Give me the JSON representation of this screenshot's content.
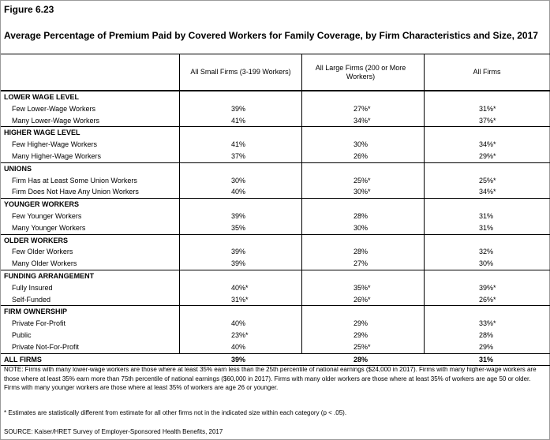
{
  "figure_label": "Figure 6.23",
  "title": "Average Percentage of Premium Paid by Covered Workers for Family Coverage, by Firm Characteristics and Size, 2017",
  "columns": [
    "All Small Firms (3-199 Workers)",
    "All Large Firms (200 or More Workers)",
    "All Firms"
  ],
  "sections": [
    {
      "heading": "LOWER WAGE LEVEL",
      "rows": [
        {
          "label": "Few Lower-Wage Workers",
          "values": [
            "39%",
            "27%*",
            "31%*"
          ]
        },
        {
          "label": "Many Lower-Wage Workers",
          "values": [
            "41%",
            "34%*",
            "37%*"
          ]
        }
      ]
    },
    {
      "heading": "HIGHER WAGE LEVEL",
      "rows": [
        {
          "label": "Few Higher-Wage Workers",
          "values": [
            "41%",
            "30%",
            "34%*"
          ]
        },
        {
          "label": "Many Higher-Wage Workers",
          "values": [
            "37%",
            "26%",
            "29%*"
          ]
        }
      ]
    },
    {
      "heading": "UNIONS",
      "rows": [
        {
          "label": "Firm Has at Least Some Union Workers",
          "values": [
            "30%",
            "25%*",
            "25%*"
          ]
        },
        {
          "label": "Firm Does Not Have Any Union Workers",
          "values": [
            "40%",
            "30%*",
            "34%*"
          ]
        }
      ]
    },
    {
      "heading": "YOUNGER WORKERS",
      "rows": [
        {
          "label": "Few Younger Workers",
          "values": [
            "39%",
            "28%",
            "31%"
          ]
        },
        {
          "label": "Many Younger Workers",
          "values": [
            "35%",
            "30%",
            "31%"
          ]
        }
      ]
    },
    {
      "heading": "OLDER WORKERS",
      "rows": [
        {
          "label": "Few Older Workers",
          "values": [
            "39%",
            "28%",
            "32%"
          ]
        },
        {
          "label": "Many Older Workers",
          "values": [
            "39%",
            "27%",
            "30%"
          ]
        }
      ]
    },
    {
      "heading": "FUNDING ARRANGEMENT",
      "rows": [
        {
          "label": "Fully Insured",
          "values": [
            "40%*",
            "35%*",
            "39%*"
          ]
        },
        {
          "label": "Self-Funded",
          "values": [
            "31%*",
            "26%*",
            "26%*"
          ]
        }
      ]
    },
    {
      "heading": "FIRM OWNERSHIP",
      "rows": [
        {
          "label": "Private For-Profit",
          "values": [
            "40%",
            "29%",
            "33%*"
          ]
        },
        {
          "label": "Public",
          "values": [
            "23%*",
            "29%",
            "28%"
          ]
        },
        {
          "label": "Private Not-For-Profit",
          "values": [
            "40%",
            "25%*",
            "29%"
          ]
        }
      ]
    }
  ],
  "total": {
    "label": "ALL FIRMS",
    "values": [
      "39%",
      "28%",
      "31%"
    ]
  },
  "note": "NOTE: Firms with many lower-wage workers are those where at least 35% earn less than the 25th percentile of national earnings ($24,000 in 2017). Firms with many higher-wage workers are those where at least 35% earn more than 75th percentile of national earnings ($60,000 in 2017). Firms with many older workers are those where at least 35% of workers are age 50 or older. Firms with many younger workers are those where at least 35% of workers are age 26 or younger.",
  "asterisk_note": "* Estimates are statistically different from estimate for all other firms not in the indicated size within each category (p < .05).",
  "source": "SOURCE: Kaiser/HRET Survey of Employer-Sponsored Health Benefits, 2017"
}
